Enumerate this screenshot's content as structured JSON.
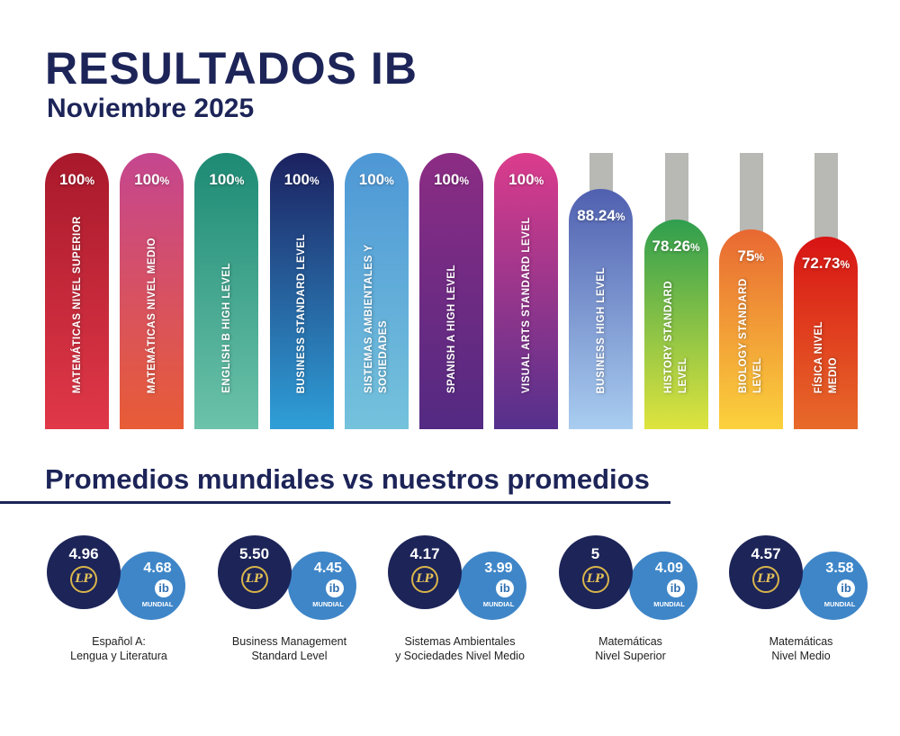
{
  "header": {
    "title": "RESULTADOS IB",
    "subtitle": "Noviembre 2025"
  },
  "chart_data": {
    "type": "bar",
    "title": "RESULTADOS IB",
    "ylim": [
      0,
      100
    ],
    "unit": "%",
    "categories": [
      "MATEMÁTICAS NIVEL SUPERIOR",
      "MATEMÁTICAS NIVEL MEDIO",
      "ENGLISH B HIGH LEVEL",
      "BUSINESS STANDARD LEVEL",
      "SISTEMAS AMBIENTALES Y SOCIEDADES",
      "SPANISH A HIGH LEVEL",
      "VISUAL ARTS STANDARD LEVEL",
      "BUSINESS HIGH LEVEL",
      "HISTORY STANDARD LEVEL",
      "BIOLOGY STANDARD LEVEL",
      "FÍSICA NIVEL MEDIO"
    ],
    "values": [
      100,
      100,
      100,
      100,
      100,
      100,
      100,
      88.24,
      78.26,
      75,
      72.73
    ],
    "value_labels": [
      "100",
      "100",
      "100",
      "100",
      "100",
      "100",
      "100",
      "88.24",
      "78.26",
      "75",
      "72.73"
    ],
    "colors": [
      [
        "#a8192b",
        "#e03848"
      ],
      [
        "#c54690",
        "#e85c36"
      ],
      [
        "#1d8a74",
        "#6cc2aa"
      ],
      [
        "#1c2160",
        "#2f9fd8"
      ],
      [
        "#4e97d6",
        "#74c2dc"
      ],
      [
        "#8c2c84",
        "#532a82"
      ],
      [
        "#dc3c8c",
        "#54308c"
      ],
      [
        "#5060b0",
        "#a9cdf0"
      ],
      [
        "#2f9e4e",
        "#dfe43e"
      ],
      [
        "#e86832",
        "#fbd23c"
      ],
      [
        "#d81414",
        "#e86a2a"
      ]
    ]
  },
  "averages": {
    "heading": "Promedios mundiales vs nuestros promedios",
    "badge": "MUNDIAL",
    "logo_school": "LP",
    "logo_ib": "ib",
    "items": [
      {
        "ours": "4.96",
        "world": "4.68",
        "line1": "Español A:",
        "line2": "Lengua y Literatura"
      },
      {
        "ours": "5.50",
        "world": "4.45",
        "line1": "Business Management",
        "line2": "Standard Level"
      },
      {
        "ours": "4.17",
        "world": "3.99",
        "line1": "Sistemas Ambientales",
        "line2": "y Sociedades Nivel Medio"
      },
      {
        "ours": "5",
        "world": "4.09",
        "line1": "Matemáticas",
        "line2": "Nivel Superior"
      },
      {
        "ours": "4.57",
        "world": "3.58",
        "line1": "Matemáticas",
        "line2": "Nivel Medio"
      }
    ]
  }
}
